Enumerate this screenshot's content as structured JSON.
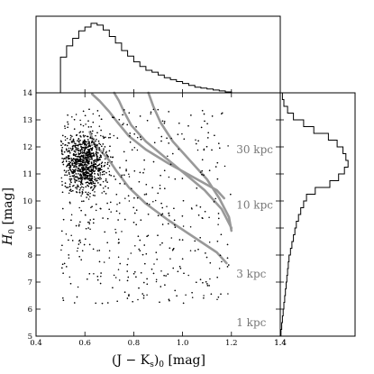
{
  "chart_data": {
    "type": "scatter",
    "title": "",
    "xlabel": "(J − K",
    "xlabel_sub": "s",
    "xlabel_tail": ")",
    "xlabel_sub2": "0",
    "xlabel_unit": " [mag]",
    "ylabel": "H",
    "ylabel_sub": "0",
    "ylabel_unit": " [mag]",
    "xlim": [
      0.4,
      1.4
    ],
    "ylim": [
      5,
      14
    ],
    "y_inverted": false,
    "x_ticks": [
      "0.4",
      "0.6",
      "0.8",
      "1.0",
      "1.2",
      "1.4"
    ],
    "y_ticks": [
      "5",
      "6",
      "7",
      "8",
      "9",
      "10",
      "11",
      "12",
      "13",
      "14"
    ],
    "x_tick_values": [
      0.4,
      0.6,
      0.8,
      1.0,
      1.2,
      1.4
    ],
    "y_tick_values": [
      5,
      6,
      7,
      8,
      9,
      10,
      11,
      12,
      13,
      14
    ],
    "scatter_color": "#000000",
    "isochrone_color": "#999999",
    "isochrones": [
      {
        "label": "30 kpc",
        "label_x": 1.22,
        "label_y": 11.9,
        "points": [
          [
            0.62,
            12.55
          ],
          [
            0.64,
            12.1
          ],
          [
            0.67,
            11.8
          ],
          [
            0.7,
            11.5
          ],
          [
            0.73,
            11.1
          ],
          [
            0.78,
            10.5
          ],
          [
            0.85,
            9.9
          ],
          [
            0.94,
            9.3
          ],
          [
            1.04,
            8.7
          ],
          [
            1.14,
            8.1
          ],
          [
            1.18,
            7.7
          ]
        ]
      },
      {
        "label": "10 kpc",
        "label_x": 1.22,
        "label_y": 9.85,
        "points": [
          [
            0.63,
            13.95
          ],
          [
            0.66,
            13.7
          ],
          [
            0.7,
            13.3
          ],
          [
            0.73,
            12.95
          ],
          [
            0.78,
            12.4
          ],
          [
            0.85,
            11.9
          ],
          [
            0.94,
            11.4
          ],
          [
            1.04,
            10.9
          ],
          [
            1.14,
            10.4
          ],
          [
            1.17,
            10.1
          ]
        ]
      },
      {
        "label": "3 kpc",
        "label_x": 1.22,
        "label_y": 7.3,
        "points": [
          [
            0.72,
            14.0
          ],
          [
            0.74,
            13.7
          ],
          [
            0.76,
            13.3
          ],
          [
            0.79,
            12.8
          ],
          [
            0.85,
            12.2
          ],
          [
            0.93,
            11.6
          ],
          [
            1.01,
            11.0
          ],
          [
            1.09,
            10.4
          ],
          [
            1.16,
            9.7
          ],
          [
            1.2,
            9.0
          ]
        ]
      },
      {
        "label": "1 kpc",
        "label_x": 1.22,
        "label_y": 5.5,
        "points": [
          [
            0.86,
            14.0
          ],
          [
            0.88,
            13.5
          ],
          [
            0.91,
            12.9
          ],
          [
            0.96,
            12.2
          ],
          [
            1.03,
            11.5
          ],
          [
            1.1,
            10.8
          ],
          [
            1.15,
            10.1
          ],
          [
            1.19,
            9.4
          ],
          [
            1.2,
            8.9
          ]
        ]
      }
    ],
    "density_center": [
      0.6,
      11.4
    ],
    "top_histogram": {
      "bin_edges": [
        0.5,
        0.525,
        0.55,
        0.575,
        0.6,
        0.625,
        0.65,
        0.675,
        0.7,
        0.725,
        0.75,
        0.775,
        0.8,
        0.825,
        0.85,
        0.875,
        0.9,
        0.925,
        0.95,
        0.975,
        1.0,
        1.025,
        1.05,
        1.075,
        1.1,
        1.125,
        1.15,
        1.175,
        1.2
      ],
      "counts": [
        38,
        50,
        58,
        66,
        70,
        74,
        72,
        67,
        60,
        53,
        45,
        39,
        33,
        28,
        24,
        22,
        19,
        16,
        14,
        12,
        10,
        8,
        6,
        5,
        4,
        3,
        2,
        1
      ]
    },
    "right_histogram": {
      "bin_edges": [
        5,
        5.25,
        5.5,
        5.75,
        6,
        6.25,
        6.5,
        6.75,
        7,
        7.25,
        7.5,
        7.75,
        8,
        8.25,
        8.5,
        8.75,
        9,
        9.25,
        9.5,
        9.75,
        10,
        10.25,
        10.5,
        10.75,
        11,
        11.25,
        11.5,
        11.75,
        12,
        12.25,
        12.5,
        12.75,
        13,
        13.25,
        13.5,
        13.75,
        14
      ],
      "counts": [
        1,
        2,
        3,
        4,
        5,
        6,
        7,
        8,
        9,
        10,
        11,
        12,
        14,
        16,
        18,
        20,
        22,
        25,
        28,
        32,
        36,
        48,
        68,
        80,
        88,
        93,
        90,
        86,
        78,
        66,
        46,
        32,
        18,
        10,
        5,
        3
      ]
    }
  },
  "colors": {
    "frame": "#000000",
    "isochrone": "#999999",
    "label": "#777777"
  }
}
